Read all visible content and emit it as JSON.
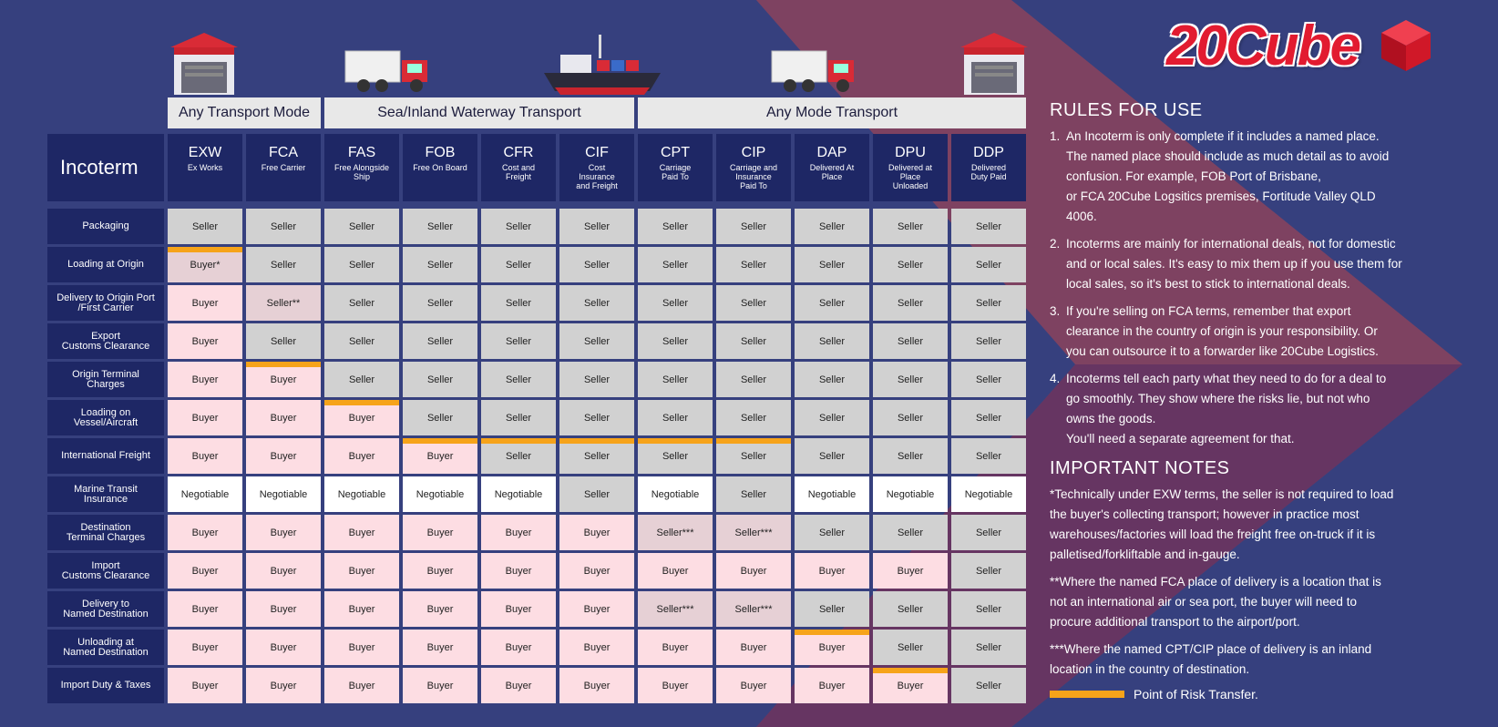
{
  "brand": {
    "name": "20Cube",
    "logo_color": "#e21b30"
  },
  "colors": {
    "seller": "#d1d1d1",
    "buyer": "#fddde3",
    "special": "#e6d0d5",
    "negotiable": "#ffffff",
    "risk": "#f6a31a",
    "header": "#1e2765"
  },
  "table": {
    "title": "Incoterm",
    "groups": [
      {
        "label": "Any Transport Mode",
        "span": 2
      },
      {
        "label": "Sea/Inland Waterway Transport",
        "span": 4
      },
      {
        "label": "Any Mode Transport",
        "span": 5
      }
    ],
    "columns": [
      {
        "code": "EXW",
        "name": "Ex Works"
      },
      {
        "code": "FCA",
        "name": "Free Carrier"
      },
      {
        "code": "FAS",
        "name": "Free Alongside\nShip"
      },
      {
        "code": "FOB",
        "name": "Free On Board"
      },
      {
        "code": "CFR",
        "name": "Cost and\nFreight"
      },
      {
        "code": "CIF",
        "name": "Cost\nInsurance\nand Freight"
      },
      {
        "code": "CPT",
        "name": "Carriage\nPaid To"
      },
      {
        "code": "CIP",
        "name": "Carriage and\nInsurance\nPaid To"
      },
      {
        "code": "DAP",
        "name": "Delivered At\nPlace"
      },
      {
        "code": "DPU",
        "name": "Delivered at\nPlace\nUnloaded"
      },
      {
        "code": "DDP",
        "name": "Delivered\nDuty Paid"
      }
    ],
    "rows": [
      {
        "label": "Packaging",
        "cells": [
          "Seller",
          "Seller",
          "Seller",
          "Seller",
          "Seller",
          "Seller",
          "Seller",
          "Seller",
          "Seller",
          "Seller",
          "Seller"
        ],
        "risk": []
      },
      {
        "label": "Loading at Origin",
        "cells": [
          "Buyer*",
          "Seller",
          "Seller",
          "Seller",
          "Seller",
          "Seller",
          "Seller",
          "Seller",
          "Seller",
          "Seller",
          "Seller"
        ],
        "risk": [
          0
        ]
      },
      {
        "label": "Delivery to Origin Port\n/First Carrier",
        "cells": [
          "Buyer",
          "Seller**",
          "Seller",
          "Seller",
          "Seller",
          "Seller",
          "Seller",
          "Seller",
          "Seller",
          "Seller",
          "Seller"
        ],
        "risk": []
      },
      {
        "label": "Export\nCustoms Clearance",
        "cells": [
          "Buyer",
          "Seller",
          "Seller",
          "Seller",
          "Seller",
          "Seller",
          "Seller",
          "Seller",
          "Seller",
          "Seller",
          "Seller"
        ],
        "risk": []
      },
      {
        "label": "Origin Terminal\nCharges",
        "cells": [
          "Buyer",
          "Buyer",
          "Seller",
          "Seller",
          "Seller",
          "Seller",
          "Seller",
          "Seller",
          "Seller",
          "Seller",
          "Seller"
        ],
        "risk": [
          1
        ]
      },
      {
        "label": "Loading on\nVessel/Aircraft",
        "cells": [
          "Buyer",
          "Buyer",
          "Buyer",
          "Seller",
          "Seller",
          "Seller",
          "Seller",
          "Seller",
          "Seller",
          "Seller",
          "Seller"
        ],
        "risk": [
          2
        ]
      },
      {
        "label": "International Freight",
        "cells": [
          "Buyer",
          "Buyer",
          "Buyer",
          "Buyer",
          "Seller",
          "Seller",
          "Seller",
          "Seller",
          "Seller",
          "Seller",
          "Seller"
        ],
        "risk": [
          3,
          4,
          5,
          6,
          7
        ]
      },
      {
        "label": "Marine Transit\nInsurance",
        "cells": [
          "Negotiable",
          "Negotiable",
          "Negotiable",
          "Negotiable",
          "Negotiable",
          "Seller",
          "Negotiable",
          "Seller",
          "Negotiable",
          "Negotiable",
          "Negotiable"
        ],
        "risk": []
      },
      {
        "label": "Destination\nTerminal Charges",
        "cells": [
          "Buyer",
          "Buyer",
          "Buyer",
          "Buyer",
          "Buyer",
          "Buyer",
          "Seller***",
          "Seller***",
          "Seller",
          "Seller",
          "Seller"
        ],
        "risk": []
      },
      {
        "label": "Import\nCustoms Clearance",
        "cells": [
          "Buyer",
          "Buyer",
          "Buyer",
          "Buyer",
          "Buyer",
          "Buyer",
          "Buyer",
          "Buyer",
          "Buyer",
          "Buyer",
          "Seller"
        ],
        "risk": []
      },
      {
        "label": "Delivery to\nNamed Destination",
        "cells": [
          "Buyer",
          "Buyer",
          "Buyer",
          "Buyer",
          "Buyer",
          "Buyer",
          "Seller***",
          "Seller***",
          "Seller",
          "Seller",
          "Seller"
        ],
        "risk": []
      },
      {
        "label": "Unloading at\nNamed Destination",
        "cells": [
          "Buyer",
          "Buyer",
          "Buyer",
          "Buyer",
          "Buyer",
          "Buyer",
          "Buyer",
          "Buyer",
          "Buyer",
          "Seller",
          "Seller"
        ],
        "risk": [
          8
        ]
      },
      {
        "label": "Import Duty & Taxes",
        "cells": [
          "Buyer",
          "Buyer",
          "Buyer",
          "Buyer",
          "Buyer",
          "Buyer",
          "Buyer",
          "Buyer",
          "Buyer",
          "Buyer",
          "Seller"
        ],
        "risk": [
          9
        ]
      }
    ]
  },
  "rules": {
    "title": "RULES FOR USE",
    "items": [
      {
        "num": "1.",
        "text": "An Incoterm is only complete if it includes a named place.\nThe named place should include as much detail as to avoid\nconfusion. For example, FOB Port of Brisbane,\nor FCA 20Cube Logsitics premises, Fortitude Valley QLD\n4006."
      },
      {
        "num": "2.",
        "text": "Incoterms are mainly for international deals, not for domestic\nand or local sales. It's easy to mix them up if you use them for\nlocal sales, so it's best to stick to international deals."
      },
      {
        "num": "3.",
        "text": "If you're selling on FCA terms, remember that export\nclearance in the country of origin is your responsibility. Or\nyou can outsource it to a forwarder like 20Cube Logistics."
      },
      {
        "num": "4.",
        "text": "Incoterms tell each party what they need to do for a deal to\ngo smoothly. They show where the risks lie, but not who\nowns the goods.\nYou'll need a separate agreement for that."
      }
    ]
  },
  "notes": {
    "title": "IMPORTANT NOTES",
    "items": [
      "*Technically under EXW terms, the seller is not required to load\nthe buyer's collecting transport; however in practice most\nwarehouses/factories will load the freight free on-truck if it is\npalletised/forkliftable and in-gauge.",
      "**Where the named FCA place of delivery is a location that is\nnot an international air or sea port, the buyer will need to\nprocure additional transport to the airport/port.",
      "***Where the named CPT/CIP place of delivery is an inland\nlocation in the country of destination."
    ],
    "legend": "Point of Risk Transfer."
  },
  "illustrations": [
    "warehouse-icon",
    "truck-icon",
    "ship-icon",
    "truck-icon",
    "warehouse-icon"
  ]
}
